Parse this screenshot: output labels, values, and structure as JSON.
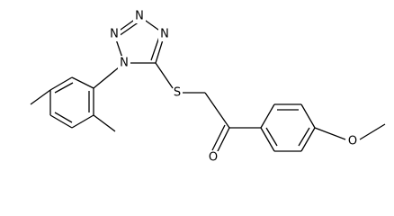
{
  "atoms": [
    "N",
    "N",
    "N",
    "N",
    "S",
    "O",
    "O"
  ]
}
